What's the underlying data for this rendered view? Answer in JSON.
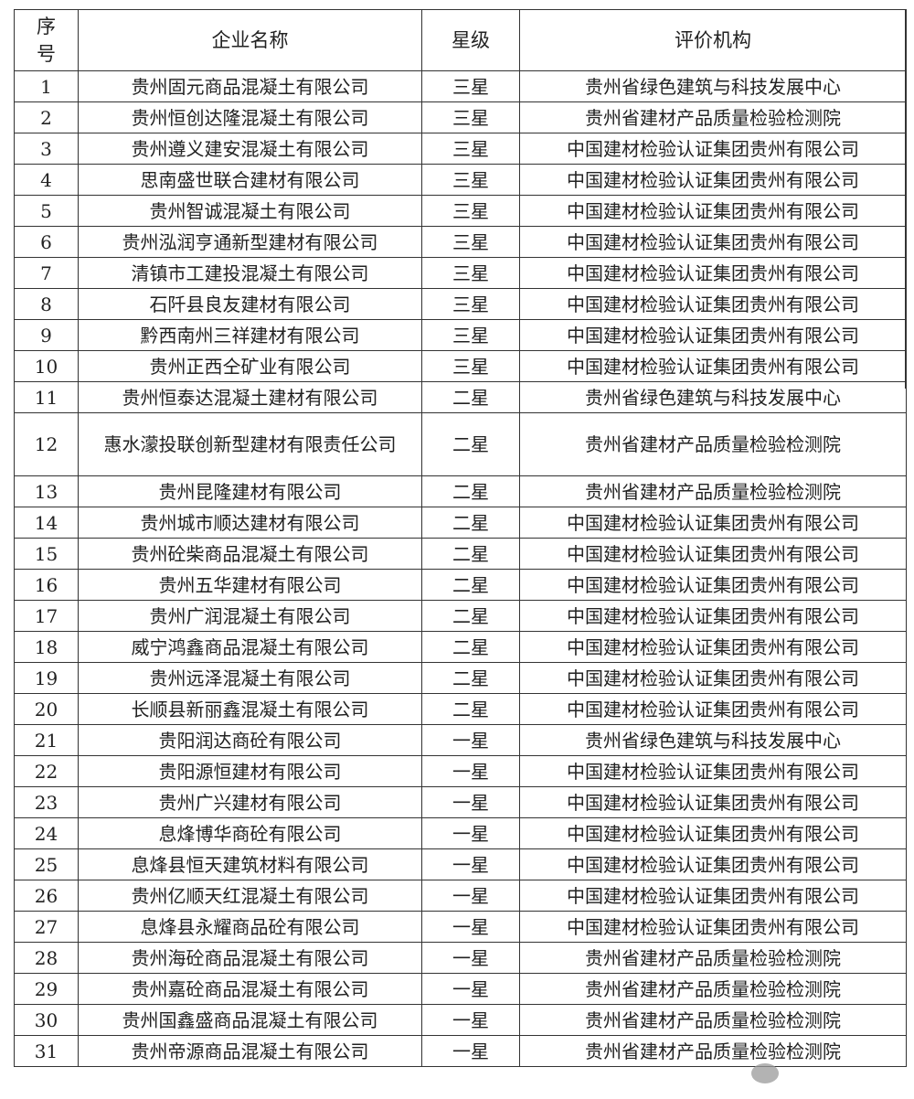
{
  "headers": {
    "seq": "序号",
    "name": "企业名称",
    "star": "星级",
    "org": "评价机构"
  },
  "rows": [
    {
      "no": "1",
      "name": "贵州固元商品混凝土有限公司",
      "star": "三星",
      "org": "贵州省绿色建筑与科技发展中心"
    },
    {
      "no": "2",
      "name": "贵州恒创达隆混凝土有限公司",
      "star": "三星",
      "org": "贵州省建材产品质量检验检测院"
    },
    {
      "no": "3",
      "name": "贵州遵义建安混凝土有限公司",
      "star": "三星",
      "org": "中国建材检验认证集团贵州有限公司"
    },
    {
      "no": "4",
      "name": "思南盛世联合建材有限公司",
      "star": "三星",
      "org": "中国建材检验认证集团贵州有限公司"
    },
    {
      "no": "5",
      "name": "贵州智诚混凝土有限公司",
      "star": "三星",
      "org": "中国建材检验认证集团贵州有限公司"
    },
    {
      "no": "6",
      "name": "贵州泓润亨通新型建材有限公司",
      "star": "三星",
      "org": "中国建材检验认证集团贵州有限公司"
    },
    {
      "no": "7",
      "name": "清镇市工建投混凝土有限公司",
      "star": "三星",
      "org": "中国建材检验认证集团贵州有限公司"
    },
    {
      "no": "8",
      "name": "石阡县良友建材有限公司",
      "star": "三星",
      "org": "中国建材检验认证集团贵州有限公司"
    },
    {
      "no": "9",
      "name": "黔西南州三祥建材有限公司",
      "star": "三星",
      "org": "中国建材检验认证集团贵州有限公司"
    },
    {
      "no": "10",
      "name": "贵州正西仝矿业有限公司",
      "star": "三星",
      "org": "中国建材检验认证集团贵州有限公司"
    },
    {
      "no": "11",
      "name": "贵州恒泰达混凝土建材有限公司",
      "star": "二星",
      "org": "贵州省绿色建筑与科技发展中心"
    },
    {
      "no": "12",
      "name": "惠水濛投联创新型建材有限责任公司",
      "star": "二星",
      "org": "贵州省建材产品质量检验检测院"
    },
    {
      "no": "13",
      "name": "贵州昆隆建材有限公司",
      "star": "二星",
      "org": "贵州省建材产品质量检验检测院"
    },
    {
      "no": "14",
      "name": "贵州城市顺达建材有限公司",
      "star": "二星",
      "org": "中国建材检验认证集团贵州有限公司"
    },
    {
      "no": "15",
      "name": "贵州砼柴商品混凝土有限公司",
      "star": "二星",
      "org": "中国建材检验认证集团贵州有限公司"
    },
    {
      "no": "16",
      "name": "贵州五华建材有限公司",
      "star": "二星",
      "org": "中国建材检验认证集团贵州有限公司"
    },
    {
      "no": "17",
      "name": "贵州广润混凝土有限公司",
      "star": "二星",
      "org": "中国建材检验认证集团贵州有限公司"
    },
    {
      "no": "18",
      "name": "威宁鸿鑫商品混凝土有限公司",
      "star": "二星",
      "org": "中国建材检验认证集团贵州有限公司"
    },
    {
      "no": "19",
      "name": "贵州远泽混凝土有限公司",
      "star": "二星",
      "org": "中国建材检验认证集团贵州有限公司"
    },
    {
      "no": "20",
      "name": "长顺县新丽鑫混凝土有限公司",
      "star": "二星",
      "org": "中国建材检验认证集团贵州有限公司"
    },
    {
      "no": "21",
      "name": "贵阳润达商砼有限公司",
      "star": "一星",
      "org": "贵州省绿色建筑与科技发展中心"
    },
    {
      "no": "22",
      "name": "贵阳源恒建材有限公司",
      "star": "一星",
      "org": "中国建材检验认证集团贵州有限公司"
    },
    {
      "no": "23",
      "name": "贵州广兴建材有限公司",
      "star": "一星",
      "org": "中国建材检验认证集团贵州有限公司"
    },
    {
      "no": "24",
      "name": "息烽博华商砼有限公司",
      "star": "一星",
      "org": "中国建材检验认证集团贵州有限公司"
    },
    {
      "no": "25",
      "name": "息烽县恒天建筑材料有限公司",
      "star": "一星",
      "org": "中国建材检验认证集团贵州有限公司"
    },
    {
      "no": "26",
      "name": "贵州亿顺天红混凝土有限公司",
      "star": "一星",
      "org": "中国建材检验认证集团贵州有限公司"
    },
    {
      "no": "27",
      "name": "息烽县永耀商品砼有限公司",
      "star": "一星",
      "org": "中国建材检验认证集团贵州有限公司"
    },
    {
      "no": "28",
      "name": "贵州海砼商品混凝土有限公司",
      "star": "一星",
      "org": "贵州省建材产品质量检验检测院"
    },
    {
      "no": "29",
      "name": "贵州嘉砼商品混凝土有限公司",
      "star": "一星",
      "org": "贵州省建材产品质量检验检测院"
    },
    {
      "no": "30",
      "name": "贵州国鑫盛商品混凝土有限公司",
      "star": "一星",
      "org": "贵州省建材产品质量检验检测院"
    },
    {
      "no": "31",
      "name": "贵州帝源商品混凝土有限公司",
      "star": "一星",
      "org": "贵州省建材产品质量检验检测院"
    }
  ]
}
